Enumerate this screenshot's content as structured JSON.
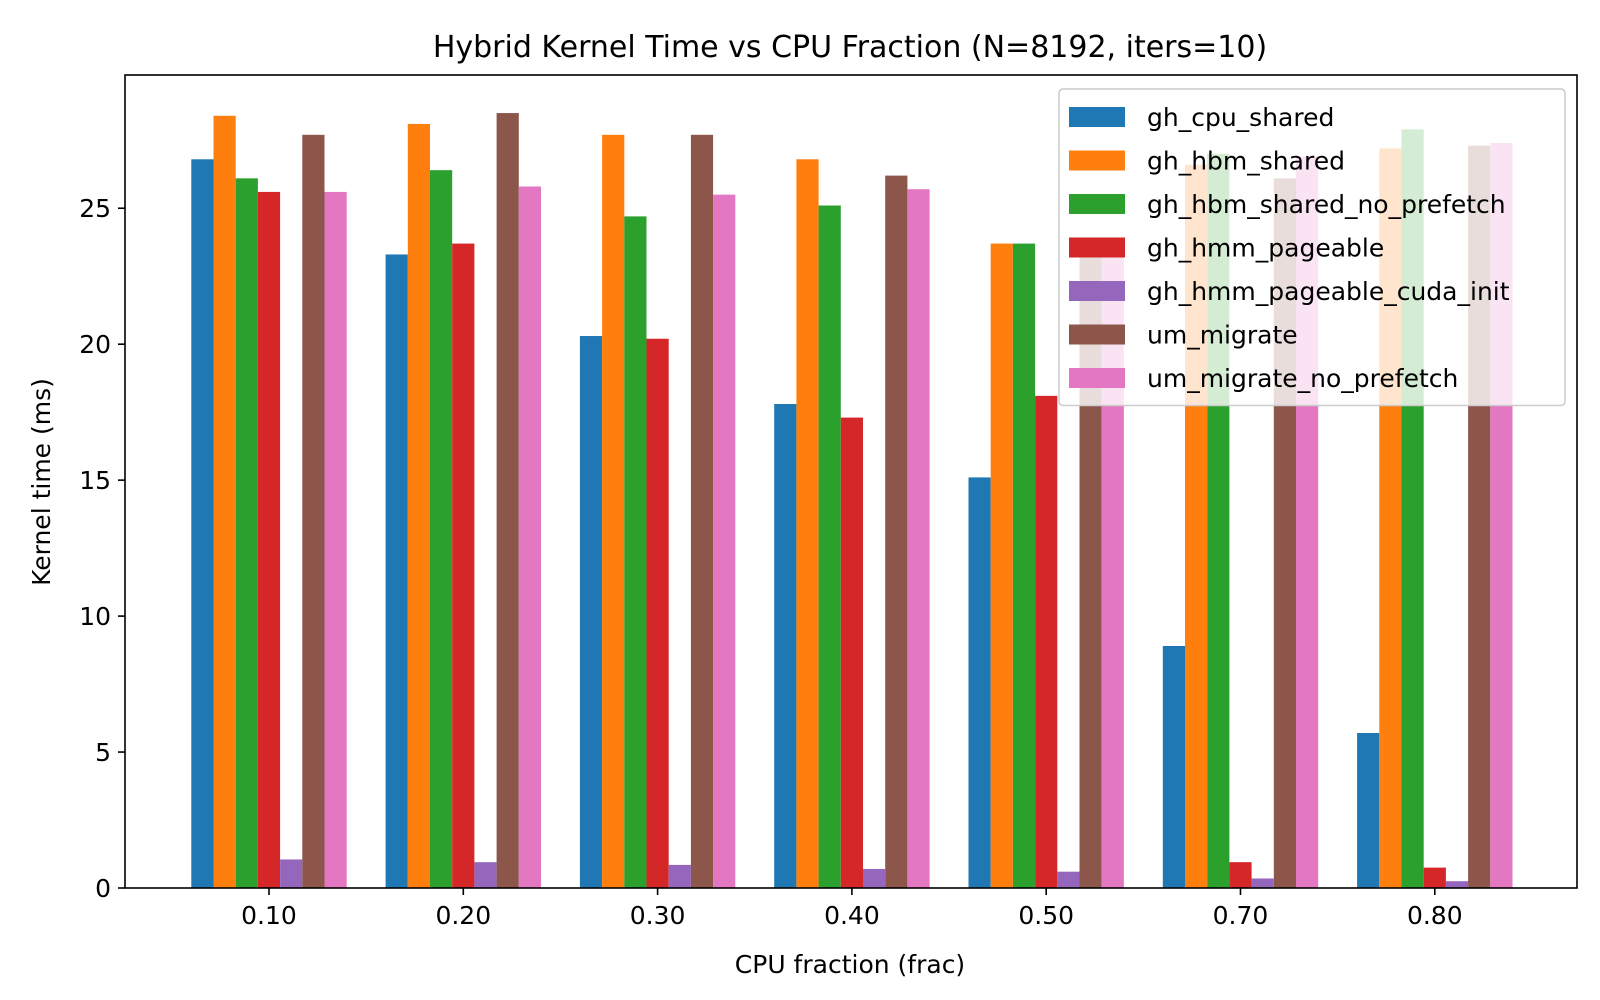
{
  "chart_data": {
    "type": "bar",
    "title": "Hybrid Kernel Time vs CPU Fraction (N=8192, iters=10)",
    "xlabel": "CPU fraction (frac)",
    "ylabel": "Kernel time (ms)",
    "categories": [
      "0.10",
      "0.20",
      "0.30",
      "0.40",
      "0.50",
      "0.70",
      "0.80"
    ],
    "ylim": [
      0,
      29.9
    ],
    "yticks": [
      0,
      5,
      10,
      15,
      20,
      25
    ],
    "legend_position": "upper right",
    "grid": false,
    "series": [
      {
        "name": "gh_cpu_shared",
        "color": "#1f77b4",
        "values": [
          26.8,
          23.3,
          20.3,
          17.8,
          15.1,
          8.9,
          5.7
        ]
      },
      {
        "name": "gh_hbm_shared",
        "color": "#ff7f0e",
        "values": [
          28.4,
          28.1,
          27.7,
          26.8,
          23.7,
          26.6,
          27.2
        ]
      },
      {
        "name": "gh_hbm_shared_no_prefetch",
        "color": "#2ca02c",
        "values": [
          26.1,
          26.4,
          24.7,
          25.1,
          23.7,
          27.0,
          27.9
        ]
      },
      {
        "name": "gh_hmm_pageable",
        "color": "#d62728",
        "values": [
          25.6,
          23.7,
          20.2,
          17.3,
          18.1,
          0.95,
          0.75
        ]
      },
      {
        "name": "gh_hmm_pageable_cuda_init",
        "color": "#9467bd",
        "values": [
          1.05,
          0.95,
          0.85,
          0.7,
          0.6,
          0.35,
          0.25
        ]
      },
      {
        "name": "um_migrate",
        "color": "#8c564b",
        "values": [
          27.7,
          28.5,
          27.7,
          26.2,
          23.2,
          26.1,
          27.3
        ]
      },
      {
        "name": "um_migrate_no_prefetch",
        "color": "#e377c2",
        "values": [
          25.6,
          25.8,
          25.5,
          25.7,
          23.5,
          26.9,
          27.4
        ]
      }
    ]
  }
}
